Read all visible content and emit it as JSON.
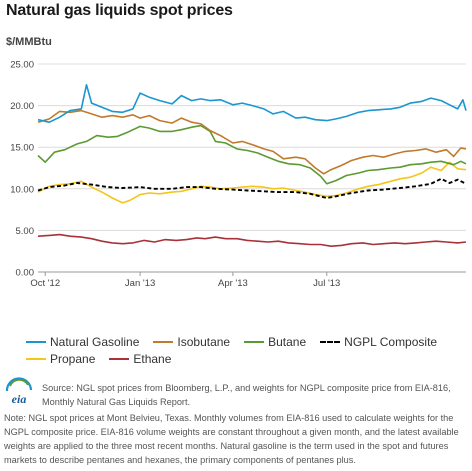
{
  "title": "Natural gas liquids spot prices",
  "unit_label": "$/MMBtu",
  "source": "Source: NGL spot prices from Bloomberg, L.P., and weights for NGPL composite price from EIA-816, Monthly Natural Gas Liquids Report.",
  "note": "Note: NGL spot prices at Mont Belvieu, Texas. Monthly volumes from EIA-816 used to calculate weights for the NGPL composite price. EIA-816 volume weights are constant throughout a given month, and the latest available weights are applied to the three most recent months. Natural gasoline is the term used in the spot and futures markets to describe pentanes and hexanes, the primary components of pentanes plus.",
  "logo_text": "eia",
  "chart_data": {
    "type": "line",
    "title": "Natural gas liquids spot prices",
    "xlabel": "",
    "ylabel": "$/MMBtu",
    "ylim": [
      0,
      25
    ],
    "yticks": [
      "0.00",
      "5.00",
      "10.00",
      "15.00",
      "20.00",
      "25.00"
    ],
    "xlim": [
      "2012-09-24",
      "2013-11-13"
    ],
    "xticks": [
      {
        "label": "Oct '12",
        "date": "2012-10-01"
      },
      {
        "label": "Jan '13",
        "date": "2013-01-01"
      },
      {
        "label": "Apr '13",
        "date": "2013-04-01"
      },
      {
        "label": "Jul '13",
        "date": "2013-07-01"
      }
    ],
    "grid": true,
    "legend_position": "bottom",
    "series": [
      {
        "name": "Natural Gasoline",
        "color": "#1b96d0",
        "dash": false,
        "points": [
          [
            "2012-09-24",
            18.3
          ],
          [
            "2012-10-05",
            18.0
          ],
          [
            "2012-10-15",
            18.6
          ],
          [
            "2012-10-25",
            19.4
          ],
          [
            "2012-11-05",
            19.6
          ],
          [
            "2012-11-10",
            22.5
          ],
          [
            "2012-11-15",
            20.3
          ],
          [
            "2012-11-25",
            19.8
          ],
          [
            "2012-12-05",
            19.3
          ],
          [
            "2012-12-15",
            19.2
          ],
          [
            "2012-12-25",
            19.6
          ],
          [
            "2013-01-01",
            21.5
          ],
          [
            "2013-01-10",
            21.0
          ],
          [
            "2013-01-20",
            20.6
          ],
          [
            "2013-02-01",
            20.2
          ],
          [
            "2013-02-10",
            21.2
          ],
          [
            "2013-02-20",
            20.6
          ],
          [
            "2013-03-01",
            20.8
          ],
          [
            "2013-03-10",
            20.6
          ],
          [
            "2013-03-20",
            20.7
          ],
          [
            "2013-04-01",
            20.1
          ],
          [
            "2013-04-10",
            20.3
          ],
          [
            "2013-04-20",
            20.0
          ],
          [
            "2013-05-01",
            19.6
          ],
          [
            "2013-05-10",
            19.0
          ],
          [
            "2013-05-20",
            19.3
          ],
          [
            "2013-06-01",
            18.5
          ],
          [
            "2013-06-10",
            18.6
          ],
          [
            "2013-06-20",
            18.3
          ],
          [
            "2013-07-01",
            18.2
          ],
          [
            "2013-07-10",
            18.4
          ],
          [
            "2013-07-20",
            18.7
          ],
          [
            "2013-08-01",
            19.2
          ],
          [
            "2013-08-10",
            19.4
          ],
          [
            "2013-08-20",
            19.5
          ],
          [
            "2013-09-01",
            19.6
          ],
          [
            "2013-09-10",
            19.8
          ],
          [
            "2013-09-20",
            20.3
          ],
          [
            "2013-10-01",
            20.5
          ],
          [
            "2013-10-10",
            20.9
          ],
          [
            "2013-10-20",
            20.6
          ],
          [
            "2013-10-28",
            20.1
          ],
          [
            "2013-11-05",
            19.6
          ],
          [
            "2013-11-10",
            20.7
          ],
          [
            "2013-11-13",
            19.4
          ]
        ]
      },
      {
        "name": "Isobutane",
        "color": "#c07a2c",
        "dash": false,
        "points": [
          [
            "2012-09-24",
            18.0
          ],
          [
            "2012-10-05",
            18.4
          ],
          [
            "2012-10-15",
            19.3
          ],
          [
            "2012-10-25",
            19.2
          ],
          [
            "2012-11-05",
            19.4
          ],
          [
            "2012-11-15",
            19.0
          ],
          [
            "2012-11-25",
            18.6
          ],
          [
            "2012-12-05",
            18.8
          ],
          [
            "2012-12-15",
            18.6
          ],
          [
            "2012-12-25",
            18.9
          ],
          [
            "2013-01-01",
            18.5
          ],
          [
            "2013-01-10",
            18.8
          ],
          [
            "2013-01-20",
            18.2
          ],
          [
            "2013-02-01",
            17.9
          ],
          [
            "2013-02-10",
            18.5
          ],
          [
            "2013-02-20",
            18.0
          ],
          [
            "2013-03-01",
            17.8
          ],
          [
            "2013-03-10",
            17.0
          ],
          [
            "2013-03-20",
            16.4
          ],
          [
            "2013-04-01",
            15.5
          ],
          [
            "2013-04-10",
            15.7
          ],
          [
            "2013-04-20",
            15.3
          ],
          [
            "2013-05-01",
            14.8
          ],
          [
            "2013-05-10",
            14.5
          ],
          [
            "2013-05-20",
            13.6
          ],
          [
            "2013-06-01",
            13.8
          ],
          [
            "2013-06-10",
            13.6
          ],
          [
            "2013-06-20",
            12.5
          ],
          [
            "2013-06-28",
            11.8
          ],
          [
            "2013-07-05",
            12.3
          ],
          [
            "2013-07-15",
            12.8
          ],
          [
            "2013-07-25",
            13.4
          ],
          [
            "2013-08-05",
            13.8
          ],
          [
            "2013-08-15",
            14.0
          ],
          [
            "2013-08-25",
            13.8
          ],
          [
            "2013-09-05",
            14.2
          ],
          [
            "2013-09-15",
            14.5
          ],
          [
            "2013-09-25",
            14.6
          ],
          [
            "2013-10-05",
            14.8
          ],
          [
            "2013-10-15",
            14.4
          ],
          [
            "2013-10-25",
            14.7
          ],
          [
            "2013-11-01",
            13.9
          ],
          [
            "2013-11-08",
            14.9
          ],
          [
            "2013-11-13",
            14.8
          ]
        ]
      },
      {
        "name": "Butane",
        "color": "#5b9a32",
        "dash": false,
        "points": [
          [
            "2012-09-24",
            14.0
          ],
          [
            "2012-10-01",
            13.2
          ],
          [
            "2012-10-10",
            14.4
          ],
          [
            "2012-10-20",
            14.7
          ],
          [
            "2012-11-01",
            15.4
          ],
          [
            "2012-11-10",
            15.7
          ],
          [
            "2012-11-20",
            16.4
          ],
          [
            "2012-12-01",
            16.2
          ],
          [
            "2012-12-10",
            16.3
          ],
          [
            "2012-12-20",
            16.8
          ],
          [
            "2013-01-01",
            17.5
          ],
          [
            "2013-01-10",
            17.3
          ],
          [
            "2013-01-20",
            16.9
          ],
          [
            "2013-02-01",
            16.9
          ],
          [
            "2013-02-10",
            17.1
          ],
          [
            "2013-02-20",
            17.4
          ],
          [
            "2013-03-01",
            17.6
          ],
          [
            "2013-03-10",
            16.9
          ],
          [
            "2013-03-15",
            15.7
          ],
          [
            "2013-03-25",
            15.5
          ],
          [
            "2013-04-05",
            14.8
          ],
          [
            "2013-04-15",
            14.6
          ],
          [
            "2013-04-25",
            14.3
          ],
          [
            "2013-05-05",
            13.8
          ],
          [
            "2013-05-15",
            13.3
          ],
          [
            "2013-05-25",
            13.0
          ],
          [
            "2013-06-05",
            12.9
          ],
          [
            "2013-06-15",
            12.5
          ],
          [
            "2013-06-25",
            11.5
          ],
          [
            "2013-07-01",
            10.6
          ],
          [
            "2013-07-10",
            11.0
          ],
          [
            "2013-07-20",
            11.6
          ],
          [
            "2013-08-01",
            11.9
          ],
          [
            "2013-08-10",
            12.2
          ],
          [
            "2013-08-20",
            12.3
          ],
          [
            "2013-09-01",
            12.5
          ],
          [
            "2013-09-10",
            12.6
          ],
          [
            "2013-09-20",
            12.9
          ],
          [
            "2013-10-01",
            13.0
          ],
          [
            "2013-10-10",
            13.2
          ],
          [
            "2013-10-20",
            13.3
          ],
          [
            "2013-11-01",
            12.9
          ],
          [
            "2013-11-08",
            13.3
          ],
          [
            "2013-11-13",
            13.0
          ]
        ]
      },
      {
        "name": "NGPL Composite",
        "color": "#000000",
        "dash": true,
        "points": [
          [
            "2012-09-24",
            9.8
          ],
          [
            "2012-10-05",
            10.2
          ],
          [
            "2012-10-20",
            10.4
          ],
          [
            "2012-11-01",
            10.7
          ],
          [
            "2012-11-15",
            10.5
          ],
          [
            "2012-12-01",
            10.2
          ],
          [
            "2012-12-15",
            10.1
          ],
          [
            "2013-01-01",
            10.2
          ],
          [
            "2013-01-15",
            10.0
          ],
          [
            "2013-02-01",
            10.0
          ],
          [
            "2013-02-15",
            10.2
          ],
          [
            "2013-03-01",
            10.2
          ],
          [
            "2013-03-15",
            10.0
          ],
          [
            "2013-04-01",
            9.9
          ],
          [
            "2013-04-15",
            9.8
          ],
          [
            "2013-05-01",
            9.7
          ],
          [
            "2013-05-15",
            9.6
          ],
          [
            "2013-06-01",
            9.6
          ],
          [
            "2013-06-15",
            9.4
          ],
          [
            "2013-07-01",
            8.9
          ],
          [
            "2013-07-10",
            9.1
          ],
          [
            "2013-07-25",
            9.5
          ],
          [
            "2013-08-10",
            9.8
          ],
          [
            "2013-08-25",
            9.9
          ],
          [
            "2013-09-10",
            10.1
          ],
          [
            "2013-09-25",
            10.3
          ],
          [
            "2013-10-10",
            10.6
          ],
          [
            "2013-10-20",
            11.2
          ],
          [
            "2013-10-28",
            10.7
          ],
          [
            "2013-11-05",
            11.1
          ],
          [
            "2013-11-13",
            10.6
          ]
        ]
      },
      {
        "name": "Propane",
        "color": "#f4c51a",
        "dash": false,
        "points": [
          [
            "2012-09-24",
            9.6
          ],
          [
            "2012-10-05",
            10.3
          ],
          [
            "2012-10-15",
            10.5
          ],
          [
            "2012-10-25",
            10.6
          ],
          [
            "2012-11-05",
            10.9
          ],
          [
            "2012-11-15",
            10.2
          ],
          [
            "2012-11-25",
            9.6
          ],
          [
            "2012-12-05",
            8.9
          ],
          [
            "2012-12-15",
            8.3
          ],
          [
            "2012-12-22",
            8.6
          ],
          [
            "2013-01-01",
            9.3
          ],
          [
            "2013-01-10",
            9.5
          ],
          [
            "2013-01-20",
            9.4
          ],
          [
            "2013-02-01",
            9.6
          ],
          [
            "2013-02-10",
            9.7
          ],
          [
            "2013-02-20",
            10.0
          ],
          [
            "2013-03-01",
            10.3
          ],
          [
            "2013-03-10",
            10.2
          ],
          [
            "2013-03-20",
            10.0
          ],
          [
            "2013-04-01",
            10.1
          ],
          [
            "2013-04-10",
            10.2
          ],
          [
            "2013-04-20",
            10.3
          ],
          [
            "2013-05-01",
            10.2
          ],
          [
            "2013-05-10",
            10.0
          ],
          [
            "2013-05-20",
            10.1
          ],
          [
            "2013-06-01",
            9.8
          ],
          [
            "2013-06-10",
            9.6
          ],
          [
            "2013-06-20",
            9.3
          ],
          [
            "2013-07-01",
            9.1
          ],
          [
            "2013-07-10",
            9.2
          ],
          [
            "2013-07-20",
            9.5
          ],
          [
            "2013-08-01",
            10.0
          ],
          [
            "2013-08-10",
            10.3
          ],
          [
            "2013-08-20",
            10.5
          ],
          [
            "2013-09-01",
            10.9
          ],
          [
            "2013-09-10",
            11.2
          ],
          [
            "2013-09-20",
            11.4
          ],
          [
            "2013-10-01",
            11.9
          ],
          [
            "2013-10-10",
            12.6
          ],
          [
            "2013-10-20",
            12.2
          ],
          [
            "2013-10-28",
            13.2
          ],
          [
            "2013-11-05",
            12.4
          ],
          [
            "2013-11-13",
            12.3
          ]
        ]
      },
      {
        "name": "Ethane",
        "color": "#a83238",
        "dash": false,
        "points": [
          [
            "2012-09-24",
            4.3
          ],
          [
            "2012-10-05",
            4.4
          ],
          [
            "2012-10-15",
            4.5
          ],
          [
            "2012-10-25",
            4.3
          ],
          [
            "2012-11-05",
            4.2
          ],
          [
            "2012-11-15",
            4.0
          ],
          [
            "2012-11-25",
            3.7
          ],
          [
            "2012-12-05",
            3.5
          ],
          [
            "2012-12-15",
            3.4
          ],
          [
            "2012-12-25",
            3.5
          ],
          [
            "2013-01-05",
            3.8
          ],
          [
            "2013-01-15",
            3.6
          ],
          [
            "2013-01-25",
            3.9
          ],
          [
            "2013-02-05",
            3.8
          ],
          [
            "2013-02-15",
            3.9
          ],
          [
            "2013-02-25",
            4.1
          ],
          [
            "2013-03-05",
            4.0
          ],
          [
            "2013-03-15",
            4.2
          ],
          [
            "2013-03-25",
            4.0
          ],
          [
            "2013-04-05",
            4.0
          ],
          [
            "2013-04-15",
            3.8
          ],
          [
            "2013-04-25",
            3.7
          ],
          [
            "2013-05-05",
            3.6
          ],
          [
            "2013-05-15",
            3.7
          ],
          [
            "2013-05-25",
            3.5
          ],
          [
            "2013-06-05",
            3.4
          ],
          [
            "2013-06-15",
            3.3
          ],
          [
            "2013-06-25",
            3.3
          ],
          [
            "2013-07-05",
            3.1
          ],
          [
            "2013-07-15",
            3.2
          ],
          [
            "2013-07-25",
            3.4
          ],
          [
            "2013-08-05",
            3.5
          ],
          [
            "2013-08-15",
            3.3
          ],
          [
            "2013-08-25",
            3.4
          ],
          [
            "2013-09-05",
            3.5
          ],
          [
            "2013-09-15",
            3.4
          ],
          [
            "2013-09-25",
            3.5
          ],
          [
            "2013-10-05",
            3.6
          ],
          [
            "2013-10-15",
            3.7
          ],
          [
            "2013-10-25",
            3.6
          ],
          [
            "2013-11-05",
            3.5
          ],
          [
            "2013-11-13",
            3.6
          ]
        ]
      }
    ]
  }
}
